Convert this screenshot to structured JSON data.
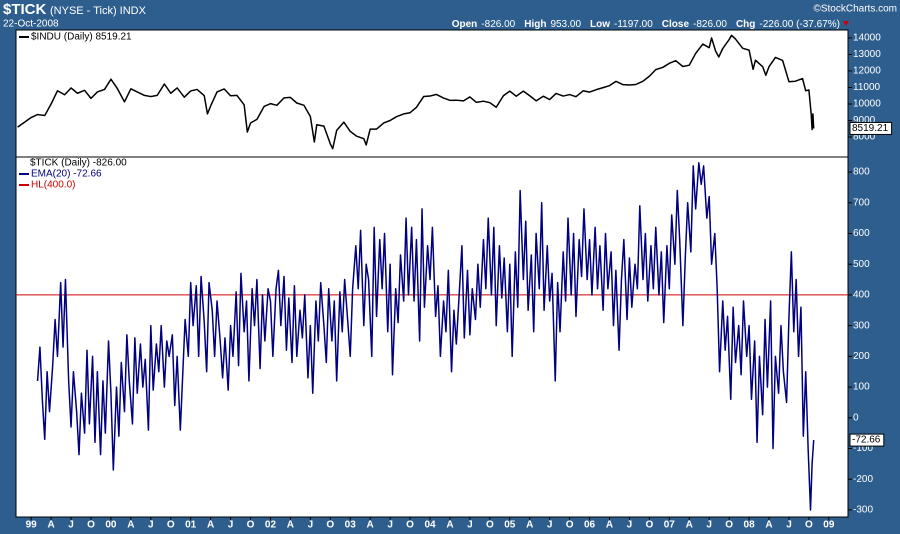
{
  "header": {
    "symbol": "$TICK",
    "description": "(NYSE - Tick) INDX",
    "date": "22-Oct-2008",
    "credit": "©StockCharts.com",
    "quote": [
      {
        "label": "Open",
        "value": "-826.00"
      },
      {
        "label": "High",
        "value": "953.00"
      },
      {
        "label": "Low",
        "value": "-1197.00"
      },
      {
        "label": "Close",
        "value": "-826.00"
      },
      {
        "label": "Chg",
        "value": "-226.00 (-37.67%)"
      }
    ]
  },
  "chart_data": [
    {
      "type": "line",
      "x": [
        1998.83,
        1999.0,
        1999.08,
        1999.17,
        1999.25,
        1999.33,
        1999.42,
        1999.5,
        1999.58,
        1999.67,
        1999.75,
        1999.83,
        1999.92,
        2000.0,
        2000.08,
        2000.17,
        2000.25,
        2000.33,
        2000.42,
        2000.5,
        2000.58,
        2000.67,
        2000.75,
        2000.83,
        2000.92,
        2001.0,
        2001.08,
        2001.17,
        2001.21,
        2001.25,
        2001.33,
        2001.42,
        2001.5,
        2001.58,
        2001.67,
        2001.71,
        2001.75,
        2001.83,
        2001.92,
        2002.0,
        2002.08,
        2002.17,
        2002.25,
        2002.33,
        2002.42,
        2002.5,
        2002.55,
        2002.58,
        2002.67,
        2002.75,
        2002.78,
        2002.83,
        2002.92,
        2003.0,
        2003.08,
        2003.17,
        2003.2,
        2003.25,
        2003.33,
        2003.42,
        2003.5,
        2003.58,
        2003.67,
        2003.75,
        2003.83,
        2003.92,
        2004.0,
        2004.08,
        2004.17,
        2004.25,
        2004.33,
        2004.42,
        2004.5,
        2004.58,
        2004.67,
        2004.75,
        2004.83,
        2004.92,
        2005.0,
        2005.08,
        2005.17,
        2005.25,
        2005.33,
        2005.42,
        2005.5,
        2005.58,
        2005.67,
        2005.75,
        2005.83,
        2005.92,
        2006.0,
        2006.08,
        2006.17,
        2006.25,
        2006.33,
        2006.42,
        2006.5,
        2006.58,
        2006.67,
        2006.75,
        2006.83,
        2006.92,
        2007.0,
        2007.08,
        2007.17,
        2007.25,
        2007.33,
        2007.42,
        2007.5,
        2007.53,
        2007.58,
        2007.62,
        2007.67,
        2007.75,
        2007.78,
        2007.83,
        2007.92,
        2008.0,
        2008.05,
        2008.08,
        2008.17,
        2008.21,
        2008.25,
        2008.33,
        2008.42,
        2008.5,
        2008.58,
        2008.67,
        2008.71,
        2008.75,
        2008.78,
        2008.79,
        2008.8,
        2008.81
      ],
      "series": [
        {
          "name": "$INDU (Daily) 8519.21",
          "color": "#000000",
          "values": [
            8600,
            9180,
            9360,
            9300,
            10000,
            10800,
            10560,
            10970,
            10650,
            10830,
            10340,
            10730,
            10880,
            11500,
            10940,
            10130,
            10920,
            10730,
            10520,
            10450,
            10520,
            11210,
            10650,
            10970,
            10410,
            10790,
            10880,
            10500,
            9400,
            9880,
            10730,
            10910,
            10500,
            10520,
            9950,
            8300,
            8850,
            9070,
            9850,
            10020,
            9920,
            10370,
            10400,
            10060,
            9920,
            9240,
            7700,
            8740,
            8660,
            7590,
            7290,
            8400,
            8900,
            8340,
            8050,
            7900,
            7520,
            8480,
            8480,
            8850,
            9000,
            9230,
            9400,
            9470,
            9800,
            10450,
            10480,
            10580,
            10360,
            10220,
            10230,
            10190,
            10430,
            10100,
            10170,
            10080,
            9800,
            10500,
            10780,
            10470,
            10780,
            10500,
            10190,
            10470,
            10270,
            10640,
            10480,
            10570,
            10440,
            10800,
            10720,
            10860,
            10990,
            11110,
            11370,
            11170,
            11150,
            11180,
            11380,
            11680,
            12080,
            12220,
            12460,
            12620,
            12270,
            12350,
            13060,
            13630,
            13410,
            14000,
            13210,
            12850,
            13360,
            13900,
            14160,
            13930,
            13370,
            13260,
            12100,
            12650,
            12260,
            11740,
            12260,
            12820,
            12640,
            11350,
            11380,
            11540,
            10800,
            10850,
            9300,
            8450,
            9400,
            8519.21
          ]
        }
      ],
      "ylim": [
        6790,
        14480
      ],
      "yticks": [
        8000,
        9000,
        10000,
        11000,
        12000,
        13000,
        14000
      ]
    },
    {
      "type": "line",
      "title": "$TICK (Daily) -826.00",
      "x": [
        1999.08,
        1999.11,
        1999.14,
        1999.17,
        1999.2,
        1999.23,
        1999.27,
        1999.3,
        1999.33,
        1999.37,
        1999.4,
        1999.43,
        1999.47,
        1999.5,
        1999.53,
        1999.57,
        1999.6,
        1999.63,
        1999.67,
        1999.7,
        1999.73,
        1999.77,
        1999.8,
        1999.83,
        1999.87,
        1999.9,
        1999.93,
        1999.97,
        2000.0,
        2000.03,
        2000.07,
        2000.1,
        2000.13,
        2000.17,
        2000.2,
        2000.23,
        2000.27,
        2000.3,
        2000.33,
        2000.37,
        2000.4,
        2000.43,
        2000.47,
        2000.5,
        2000.53,
        2000.57,
        2000.6,
        2000.63,
        2000.67,
        2000.7,
        2000.73,
        2000.77,
        2000.8,
        2000.83,
        2000.87,
        2000.9,
        2000.93,
        2000.97,
        2001.0,
        2001.03,
        2001.07,
        2001.1,
        2001.13,
        2001.17,
        2001.2,
        2001.23,
        2001.27,
        2001.3,
        2001.33,
        2001.37,
        2001.4,
        2001.43,
        2001.47,
        2001.5,
        2001.53,
        2001.57,
        2001.6,
        2001.63,
        2001.67,
        2001.7,
        2001.73,
        2001.77,
        2001.8,
        2001.83,
        2001.87,
        2001.9,
        2001.93,
        2001.97,
        2002.0,
        2002.03,
        2002.07,
        2002.1,
        2002.13,
        2002.17,
        2002.2,
        2002.23,
        2002.27,
        2002.3,
        2002.33,
        2002.37,
        2002.4,
        2002.43,
        2002.47,
        2002.5,
        2002.53,
        2002.57,
        2002.6,
        2002.63,
        2002.67,
        2002.7,
        2002.73,
        2002.77,
        2002.8,
        2002.83,
        2002.87,
        2002.9,
        2002.93,
        2002.97,
        2003.0,
        2003.03,
        2003.07,
        2003.1,
        2003.13,
        2003.17,
        2003.2,
        2003.23,
        2003.27,
        2003.3,
        2003.33,
        2003.37,
        2003.4,
        2003.43,
        2003.47,
        2003.5,
        2003.53,
        2003.57,
        2003.6,
        2003.63,
        2003.67,
        2003.7,
        2003.73,
        2003.77,
        2003.8,
        2003.83,
        2003.87,
        2003.9,
        2003.93,
        2003.97,
        2004.0,
        2004.03,
        2004.07,
        2004.1,
        2004.13,
        2004.17,
        2004.2,
        2004.23,
        2004.27,
        2004.3,
        2004.33,
        2004.37,
        2004.4,
        2004.43,
        2004.47,
        2004.5,
        2004.53,
        2004.57,
        2004.6,
        2004.63,
        2004.67,
        2004.7,
        2004.73,
        2004.77,
        2004.8,
        2004.83,
        2004.87,
        2004.9,
        2004.93,
        2004.97,
        2005.0,
        2005.03,
        2005.07,
        2005.1,
        2005.13,
        2005.17,
        2005.2,
        2005.23,
        2005.27,
        2005.3,
        2005.33,
        2005.37,
        2005.4,
        2005.43,
        2005.47,
        2005.5,
        2005.53,
        2005.57,
        2005.6,
        2005.63,
        2005.67,
        2005.7,
        2005.73,
        2005.77,
        2005.8,
        2005.83,
        2005.87,
        2005.9,
        2005.93,
        2005.97,
        2006.0,
        2006.03,
        2006.07,
        2006.1,
        2006.13,
        2006.17,
        2006.2,
        2006.23,
        2006.27,
        2006.3,
        2006.33,
        2006.37,
        2006.4,
        2006.43,
        2006.47,
        2006.5,
        2006.53,
        2006.57,
        2006.6,
        2006.63,
        2006.67,
        2006.7,
        2006.73,
        2006.77,
        2006.8,
        2006.83,
        2006.87,
        2006.9,
        2006.93,
        2006.97,
        2007.0,
        2007.03,
        2007.07,
        2007.1,
        2007.13,
        2007.17,
        2007.2,
        2007.23,
        2007.27,
        2007.3,
        2007.33,
        2007.37,
        2007.4,
        2007.43,
        2007.47,
        2007.5,
        2007.53,
        2007.57,
        2007.6,
        2007.63,
        2007.67,
        2007.7,
        2007.73,
        2007.77,
        2007.8,
        2007.83,
        2007.87,
        2007.9,
        2007.93,
        2007.97,
        2008.0,
        2008.03,
        2008.07,
        2008.1,
        2008.13,
        2008.17,
        2008.2,
        2008.23,
        2008.27,
        2008.3,
        2008.33,
        2008.37,
        2008.4,
        2008.43,
        2008.47,
        2008.5,
        2008.53,
        2008.56,
        2008.59,
        2008.62,
        2008.65,
        2008.68,
        2008.71,
        2008.74,
        2008.77,
        2008.79,
        2008.81
      ],
      "series": [
        {
          "name": "EMA(20) -72.66",
          "color": "#000080",
          "values": [
            120,
            230,
            60,
            -70,
            150,
            20,
            170,
            320,
            200,
            440,
            230,
            450,
            120,
            -30,
            150,
            20,
            -120,
            80,
            -50,
            220,
            -20,
            200,
            -80,
            150,
            -120,
            120,
            -50,
            250,
            80,
            -170,
            100,
            -60,
            180,
            20,
            270,
            120,
            -20,
            260,
            80,
            240,
            100,
            190,
            -40,
            300,
            90,
            240,
            150,
            300,
            100,
            250,
            200,
            270,
            40,
            200,
            -40,
            140,
            320,
            200,
            440,
            300,
            430,
            200,
            460,
            310,
            150,
            440,
            350,
            200,
            380,
            250,
            130,
            260,
            90,
            300,
            200,
            410,
            170,
            470,
            280,
            380,
            120,
            420,
            300,
            450,
            160,
            400,
            250,
            420,
            380,
            200,
            420,
            480,
            300,
            460,
            220,
            390,
            180,
            430,
            200,
            350,
            260,
            400,
            130,
            300,
            80,
            380,
            250,
            440,
            300,
            180,
            420,
            250,
            380,
            120,
            410,
            280,
            450,
            310,
            200,
            420,
            560,
            420,
            610,
            300,
            500,
            450,
            200,
            620,
            330,
            580,
            420,
            600,
            280,
            500,
            140,
            420,
            310,
            530,
            380,
            650,
            400,
            620,
            380,
            580,
            250,
            680,
            360,
            560,
            450,
            620,
            330,
            430,
            200,
            380,
            280,
            480,
            150,
            350,
            240,
            420,
            560,
            260,
            480,
            270,
            420,
            320,
            500,
            360,
            580,
            420,
            650,
            400,
            620,
            300,
            560,
            390,
            520,
            280,
            500,
            200,
            540,
            360,
            740,
            450,
            640,
            350,
            530,
            280,
            600,
            420,
            700,
            350,
            560,
            380,
            470,
            120,
            440,
            280,
            540,
            380,
            650,
            400,
            600,
            330,
            580,
            460,
            680,
            450,
            580,
            400,
            620,
            420,
            560,
            350,
            600,
            420,
            540,
            300,
            480,
            220,
            450,
            580,
            320,
            520,
            360,
            500,
            420,
            690,
            450,
            600,
            380,
            560,
            420,
            620,
            400,
            540,
            310,
            560,
            420,
            660,
            500,
            740,
            580,
            300,
            520,
            700,
            540,
            820,
            680,
            830,
            760,
            820,
            650,
            720,
            500,
            600,
            420,
            150,
            380,
            220,
            330,
            60,
            360,
            180,
            300,
            140,
            380,
            200,
            300,
            60,
            250,
            -80,
            200,
            10,
            320,
            100,
            380,
            -100,
            200,
            80,
            300,
            150,
            50,
            330,
            540,
            280,
            450,
            200,
            360,
            -60,
            150,
            -100,
            -300,
            -150,
            -72.66
          ]
        }
      ],
      "hlines": [
        {
          "name": "HL(400.0)",
          "color": "#cc0000",
          "value": 400
        }
      ],
      "ylim": [
        -323,
        849
      ],
      "yticks": [
        -300,
        -200,
        -100,
        0,
        100,
        200,
        300,
        400,
        500,
        600,
        700,
        800
      ],
      "xlim": [
        1998.81,
        2009.24
      ],
      "xticks": [
        {
          "value": 1999,
          "label": "99"
        },
        {
          "value": 1999.25,
          "label": "A"
        },
        {
          "value": 1999.5,
          "label": "J"
        },
        {
          "value": 1999.75,
          "label": "O"
        },
        {
          "value": 2000,
          "label": "00"
        },
        {
          "value": 2000.25,
          "label": "A"
        },
        {
          "value": 2000.5,
          "label": "J"
        },
        {
          "value": 2000.75,
          "label": "O"
        },
        {
          "value": 2001,
          "label": "01"
        },
        {
          "value": 2001.25,
          "label": "A"
        },
        {
          "value": 2001.5,
          "label": "J"
        },
        {
          "value": 2001.75,
          "label": "O"
        },
        {
          "value": 2002,
          "label": "02"
        },
        {
          "value": 2002.25,
          "label": "A"
        },
        {
          "value": 2002.5,
          "label": "J"
        },
        {
          "value": 2002.75,
          "label": "O"
        },
        {
          "value": 2003,
          "label": "03"
        },
        {
          "value": 2003.25,
          "label": "A"
        },
        {
          "value": 2003.5,
          "label": "J"
        },
        {
          "value": 2003.75,
          "label": "O"
        },
        {
          "value": 2004,
          "label": "04"
        },
        {
          "value": 2004.25,
          "label": "A"
        },
        {
          "value": 2004.5,
          "label": "J"
        },
        {
          "value": 2004.75,
          "label": "O"
        },
        {
          "value": 2005,
          "label": "05"
        },
        {
          "value": 2005.25,
          "label": "A"
        },
        {
          "value": 2005.5,
          "label": "J"
        },
        {
          "value": 2005.75,
          "label": "O"
        },
        {
          "value": 2006,
          "label": "06"
        },
        {
          "value": 2006.25,
          "label": "A"
        },
        {
          "value": 2006.5,
          "label": "J"
        },
        {
          "value": 2006.75,
          "label": "O"
        },
        {
          "value": 2007,
          "label": "07"
        },
        {
          "value": 2007.25,
          "label": "A"
        },
        {
          "value": 2007.5,
          "label": "J"
        },
        {
          "value": 2007.75,
          "label": "O"
        },
        {
          "value": 2008,
          "label": "08"
        },
        {
          "value": 2008.25,
          "label": "A"
        },
        {
          "value": 2008.5,
          "label": "J"
        },
        {
          "value": 2008.75,
          "label": "O"
        },
        {
          "value": 2009,
          "label": "09"
        }
      ]
    }
  ]
}
